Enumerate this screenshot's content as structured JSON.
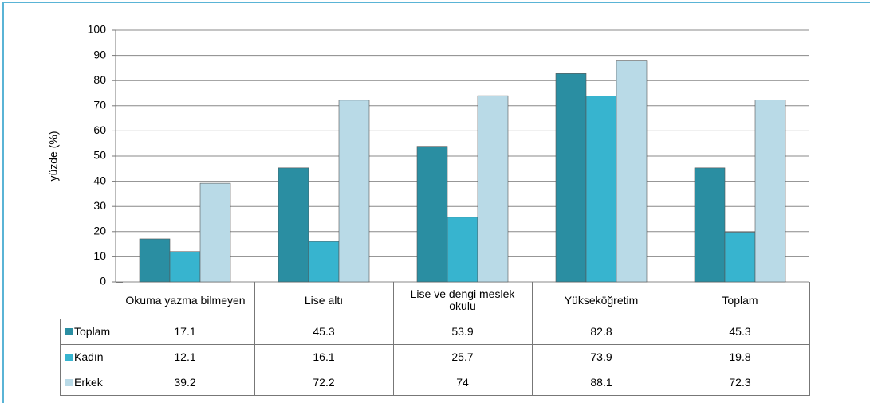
{
  "chart_data": {
    "type": "bar",
    "ylabel": "yüzde (%)",
    "categories": [
      "Okuma yazma bilmeyen",
      "Lise altı",
      "Lise ve dengi meslek okulu",
      "Yükseköğretim",
      "Toplam"
    ],
    "series": [
      {
        "name": "Toplam",
        "color": "#2a8ea2",
        "values": [
          17.1,
          45.3,
          53.9,
          82.8,
          45.3
        ]
      },
      {
        "name": "Kadın",
        "color": "#37b4cf",
        "values": [
          12.1,
          16.1,
          25.7,
          73.9,
          19.8
        ]
      },
      {
        "name": "Erkek",
        "color": "#b9dae7",
        "values": [
          39.2,
          72.2,
          74,
          88.1,
          72.3
        ]
      }
    ],
    "ylim": [
      0,
      100
    ],
    "yticks": [
      0,
      10,
      20,
      30,
      40,
      50,
      60,
      70,
      80,
      90,
      100
    ],
    "grid": true
  }
}
